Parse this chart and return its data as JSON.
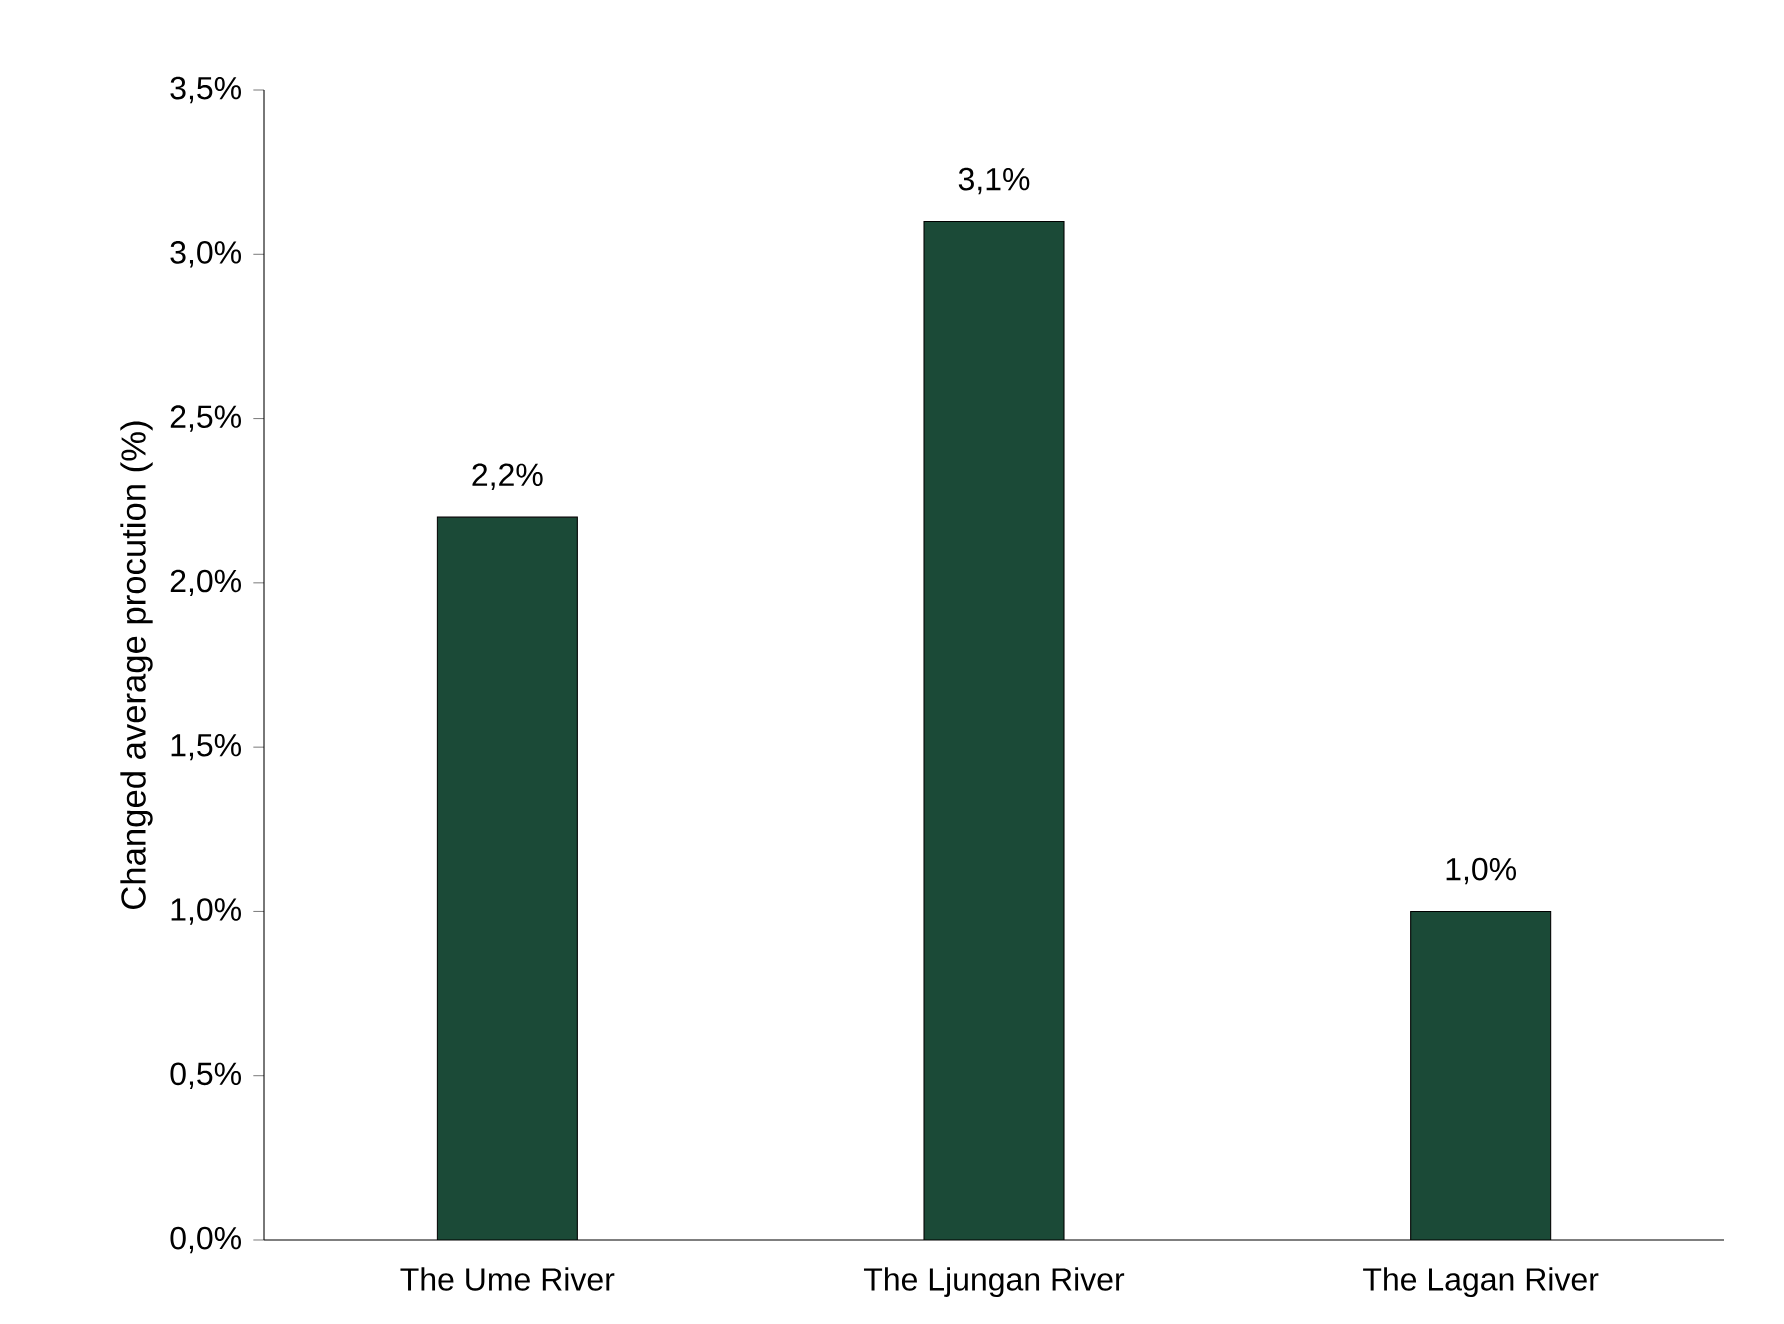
{
  "chart_data": {
    "type": "bar",
    "ylabel": "Changed average procution (%)",
    "categories": [
      "The Ume River",
      "The Ljungan River",
      "The Lagan River"
    ],
    "values": [
      2.2,
      3.1,
      1.0
    ],
    "value_labels": [
      "2,2%",
      "3,1%",
      "1,0%"
    ],
    "color": "#1b4a37",
    "ylim": [
      0,
      3.5
    ],
    "yticks": [
      {
        "value": 0,
        "label": "0,0%"
      },
      {
        "value": 0.5,
        "label": "0,5%"
      },
      {
        "value": 1.0,
        "label": "1,0%"
      },
      {
        "value": 1.5,
        "label": "1,5%"
      },
      {
        "value": 2.0,
        "label": "2,0%"
      },
      {
        "value": 2.5,
        "label": "2,5%"
      },
      {
        "value": 3.0,
        "label": "3,0%"
      },
      {
        "value": 3.5,
        "label": "3,5%"
      }
    ]
  }
}
